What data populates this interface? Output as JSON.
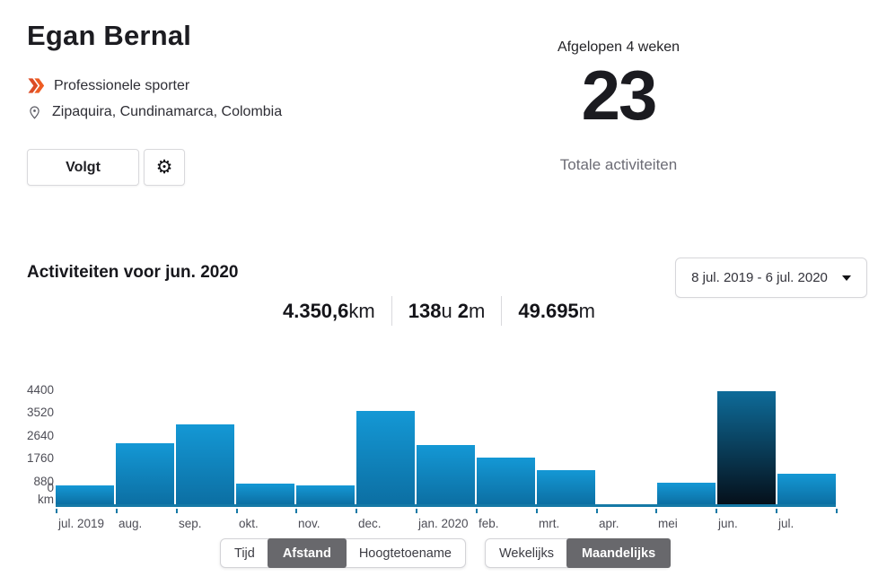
{
  "profile": {
    "name": "Egan Bernal",
    "badge": "Professionele sporter",
    "location": "Zipaquira, Cundinamarca, Colombia",
    "follow_label": "Volgt",
    "icons": [
      "double-chevron-icon",
      "location-pin-icon",
      "gear-icon",
      "chevron-down-icon"
    ],
    "accent_color": "#e8512a"
  },
  "summary": {
    "label": "Afgelopen 4 weken",
    "value": "23",
    "caption": "Totale activiteiten"
  },
  "activities": {
    "title": "Activiteiten voor jun. 2020",
    "date_range": "8 jul. 2019 - 6 jul. 2020",
    "stats": [
      {
        "parts": [
          {
            "t": "4.350,6",
            "strong": true
          },
          {
            "t": "km",
            "strong": false
          }
        ]
      },
      {
        "parts": [
          {
            "t": "138",
            "strong": true
          },
          {
            "t": "u ",
            "strong": false
          },
          {
            "t": "2",
            "strong": true
          },
          {
            "t": "m",
            "strong": false
          }
        ]
      },
      {
        "parts": [
          {
            "t": "49.695",
            "strong": true
          },
          {
            "t": "m",
            "strong": false
          }
        ]
      }
    ]
  },
  "chart_data": {
    "type": "bar",
    "title": "Activiteiten voor jun. 2020",
    "categories": [
      "jul. 2019",
      "aug.",
      "sep.",
      "okt.",
      "nov.",
      "dec.",
      "jan. 2020",
      "feb.",
      "mrt.",
      "apr.",
      "mei",
      "jun.",
      "jul."
    ],
    "values": [
      730,
      2370,
      3100,
      800,
      730,
      3590,
      2300,
      1810,
      1320,
      0,
      840,
      4350.6,
      1180
    ],
    "selected_index": 11,
    "selected_label": "jun. 2020",
    "xlabel": "",
    "ylabel": "km",
    "yticks": [
      4400,
      3520,
      2640,
      1760,
      880,
      0
    ],
    "ylim": [
      0,
      4400
    ],
    "grid": false,
    "legend": "none",
    "bar_color_top": "#1498d5",
    "bar_color_bottom": "#0c6fa3",
    "selected_color_top": "#0e6b99",
    "selected_color_bottom": "#05101b",
    "axis_color": "#1579a6",
    "label_color": "#4d4d56"
  },
  "toggles": {
    "metric": {
      "options": [
        "Tijd",
        "Afstand",
        "Hoogtetoename"
      ],
      "selected": "Afstand"
    },
    "period": {
      "options": [
        "Wekelijks",
        "Maandelijks"
      ],
      "selected": "Maandelijks"
    },
    "selected_bg": "#68686c"
  }
}
